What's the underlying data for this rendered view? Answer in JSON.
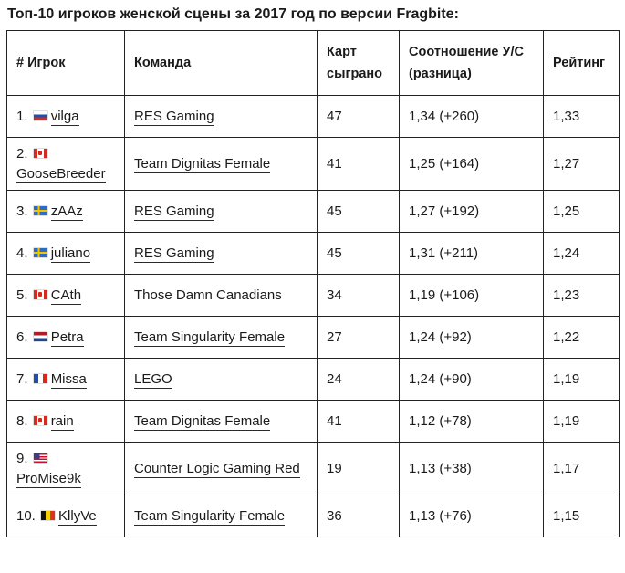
{
  "title": "Топ-10 игроков женской сцены за 2017 год по версии Fragbite:",
  "headers": {
    "player": "# Игрок",
    "team": "Команда",
    "maps_line1": "Карт",
    "maps_line2": "сыграно",
    "kd_line1": "Соотношение У/С",
    "kd_line2": "(разница)",
    "rating": "Рейтинг"
  },
  "rows": [
    {
      "rank": "1.",
      "flag": "ru-flag-icon",
      "player": "vilga",
      "team": "RES Gaming",
      "team_link": true,
      "maps": "47",
      "kd": "1,34 (+260)",
      "rating": "1,33"
    },
    {
      "rank": "2.",
      "flag": "ca-flag-icon",
      "player": "GooseBreeder",
      "team": "Team Dignitas Female",
      "team_link": true,
      "maps": "41",
      "kd": "1,25 (+164)",
      "rating": "1,27"
    },
    {
      "rank": "3.",
      "flag": "se-flag-icon",
      "player": "zAAz",
      "team": "RES Gaming",
      "team_link": true,
      "maps": "45",
      "kd": "1,27 (+192)",
      "rating": "1,25"
    },
    {
      "rank": "4.",
      "flag": "se-flag-icon",
      "player": "juliano",
      "team": "RES Gaming",
      "team_link": true,
      "maps": "45",
      "kd": "1,31 (+211)",
      "rating": "1,24"
    },
    {
      "rank": "5.",
      "flag": "ca-flag-icon",
      "player": "CAth",
      "team": "Those Damn Canadians",
      "team_link": false,
      "maps": "34",
      "kd": "1,19 (+106)",
      "rating": "1,23"
    },
    {
      "rank": "6.",
      "flag": "nl-flag-icon",
      "player": "Petra",
      "team": "Team Singularity Female",
      "team_link": true,
      "maps": "27",
      "kd": "1,24 (+92)",
      "rating": "1,22"
    },
    {
      "rank": "7.",
      "flag": "fr-flag-icon",
      "player": "Missa",
      "team": "LEGO",
      "team_link": true,
      "maps": "24",
      "kd": "1,24 (+90)",
      "rating": "1,19"
    },
    {
      "rank": "8.",
      "flag": "ca-flag-icon",
      "player": "rain",
      "team": "Team Dignitas Female",
      "team_link": true,
      "maps": "41",
      "kd": "1,12 (+78)",
      "rating": "1,19"
    },
    {
      "rank": "9.",
      "flag": "us-flag-icon",
      "player": "ProMise9k",
      "team": "Counter Logic Gaming Red",
      "team_link": true,
      "maps": "19",
      "kd": "1,13 (+38)",
      "rating": "1,17"
    },
    {
      "rank": "10.",
      "flag": "be-flag-icon",
      "player": "KllyVe",
      "team": "Team Singularity Female",
      "team_link": true,
      "maps": "36",
      "kd": "1,13 (+76)",
      "rating": "1,15"
    }
  ]
}
